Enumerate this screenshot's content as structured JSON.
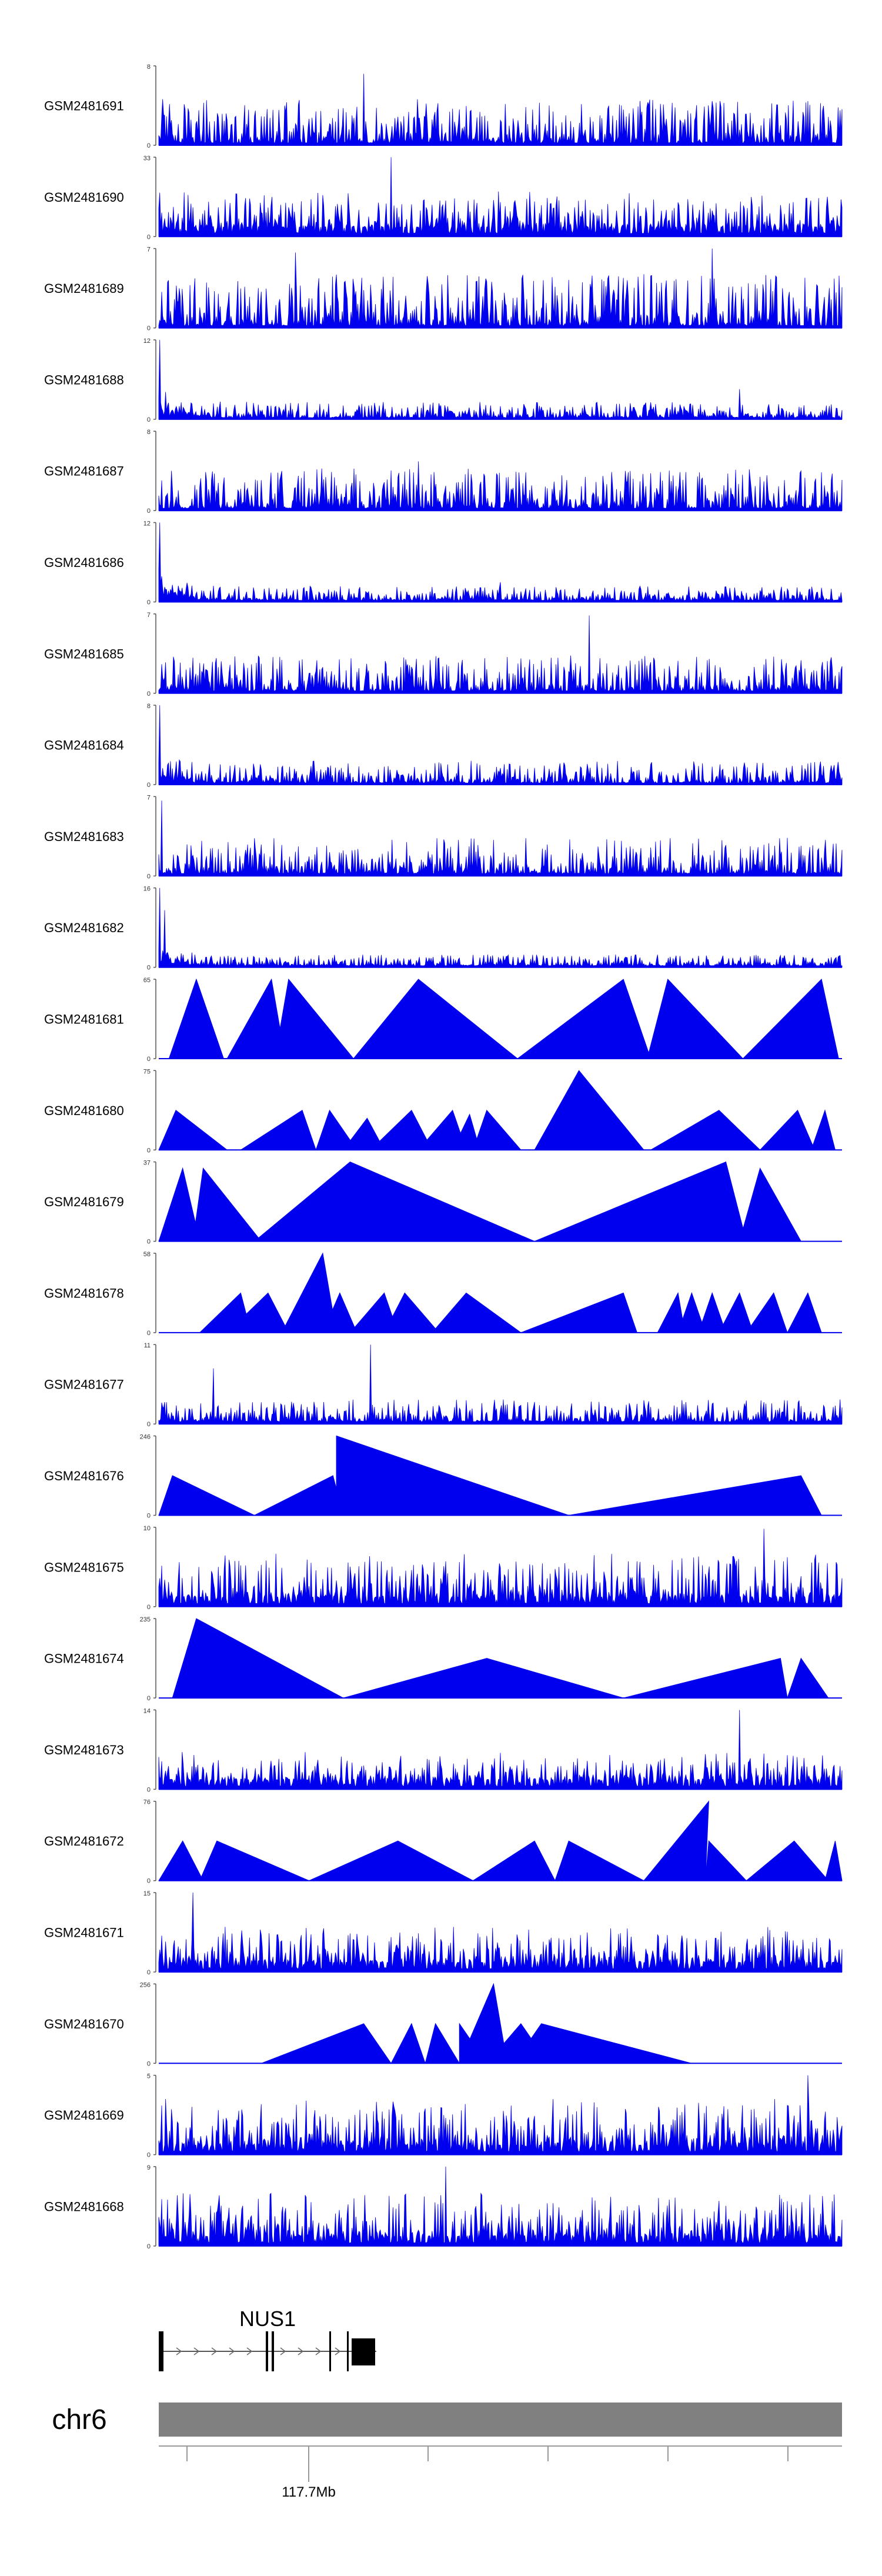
{
  "chart_data": {
    "type": "area",
    "color": "#0000ee",
    "tracks": [
      {
        "name": "GSM2481691",
        "ymax": "8",
        "ymin": "0",
        "style": "noise",
        "seed": 11,
        "spikes": [
          [
            0.3,
            0.9
          ]
        ],
        "jag": 0.55
      },
      {
        "name": "GSM2481690",
        "ymax": "33",
        "ymin": "0",
        "style": "tri",
        "seed": 12,
        "spikes": [
          [
            0.34,
            1.0
          ]
        ],
        "jag": 0.45
      },
      {
        "name": "GSM2481689",
        "ymax": "7",
        "ymin": "0",
        "style": "noise",
        "seed": 13,
        "spikes": [
          [
            0.81,
            1.0
          ],
          [
            0.2,
            0.95
          ]
        ],
        "jag": 0.65
      },
      {
        "name": "GSM2481688",
        "ymax": "12",
        "ymin": "0",
        "style": "low",
        "seed": 14,
        "spikes": [
          [
            0.002,
            1.0
          ],
          [
            0.85,
            0.38
          ]
        ],
        "jag": 0.2
      },
      {
        "name": "GSM2481687",
        "ymax": "8",
        "ymin": "0",
        "style": "noise",
        "seed": 15,
        "spikes": [
          [
            0.38,
            0.62
          ]
        ],
        "jag": 0.5
      },
      {
        "name": "GSM2481686",
        "ymax": "12",
        "ymin": "0",
        "style": "low",
        "seed": 16,
        "spikes": [
          [
            0.002,
            1.0
          ],
          [
            0.5,
            0.25
          ]
        ],
        "jag": 0.18
      },
      {
        "name": "GSM2481685",
        "ymax": "7",
        "ymin": "0",
        "style": "noise",
        "seed": 17,
        "spikes": [
          [
            0.63,
            0.98
          ]
        ],
        "jag": 0.45
      },
      {
        "name": "GSM2481684",
        "ymax": "8",
        "ymin": "0",
        "style": "low",
        "seed": 18,
        "spikes": [
          [
            0.002,
            1.0
          ]
        ],
        "jag": 0.28
      },
      {
        "name": "GSM2481683",
        "ymax": "7",
        "ymin": "0",
        "style": "noise",
        "seed": 19,
        "spikes": [
          [
            0.004,
            0.95
          ]
        ],
        "jag": 0.45
      },
      {
        "name": "GSM2481682",
        "ymax": "16",
        "ymin": "0",
        "style": "low",
        "seed": 20,
        "spikes": [
          [
            0.002,
            1.0
          ],
          [
            0.008,
            0.72
          ]
        ],
        "jag": 0.14
      },
      {
        "name": "GSM2481681",
        "ymax": "65",
        "ymin": "0",
        "style": "peaks",
        "peaks": [
          [
            0.015,
            0.095,
            0.055,
            1.0
          ],
          [
            0.1,
            0.185,
            0.165,
            1.0
          ],
          [
            0.17,
            0.285,
            0.19,
            1.0
          ],
          [
            0.285,
            0.525,
            0.38,
            1.0
          ],
          [
            0.525,
            0.72,
            0.68,
            1.0
          ],
          [
            0.715,
            0.855,
            0.745,
            1.0
          ],
          [
            0.855,
            0.995,
            0.97,
            1.0
          ]
        ]
      },
      {
        "name": "GSM2481680",
        "ymax": "75",
        "ymin": "0",
        "style": "peaks",
        "peaks": [
          [
            0.0,
            0.1,
            0.025,
            0.5
          ],
          [
            0.12,
            0.23,
            0.21,
            0.5
          ],
          [
            0.23,
            0.29,
            0.25,
            0.5
          ],
          [
            0.27,
            0.33,
            0.305,
            0.4
          ],
          [
            0.31,
            0.4,
            0.37,
            0.5
          ],
          [
            0.38,
            0.45,
            0.43,
            0.5
          ],
          [
            0.43,
            0.47,
            0.455,
            0.45
          ],
          [
            0.46,
            0.53,
            0.48,
            0.5
          ],
          [
            0.55,
            0.71,
            0.615,
            1.0
          ],
          [
            0.72,
            0.88,
            0.82,
            0.5
          ],
          [
            0.88,
            0.96,
            0.935,
            0.5
          ],
          [
            0.955,
            0.99,
            0.975,
            0.5
          ]
        ]
      },
      {
        "name": "GSM2481679",
        "ymax": "37",
        "ymin": "0",
        "style": "peaks",
        "peaks": [
          [
            0.0,
            0.06,
            0.035,
            0.92
          ],
          [
            0.05,
            0.15,
            0.065,
            0.92
          ],
          [
            0.14,
            0.55,
            0.28,
            1.0
          ],
          [
            0.55,
            0.86,
            0.83,
            1.0
          ],
          [
            0.85,
            0.94,
            0.88,
            0.92
          ]
        ]
      },
      {
        "name": "GSM2481678",
        "ymax": "58",
        "ymin": "0",
        "style": "peaks",
        "peaks": [
          [
            0.06,
            0.135,
            0.12,
            0.5
          ],
          [
            0.1,
            0.19,
            0.16,
            0.5
          ],
          [
            0.18,
            0.26,
            0.24,
            1.0
          ],
          [
            0.24,
            0.29,
            0.265,
            0.5
          ],
          [
            0.28,
            0.35,
            0.33,
            0.5
          ],
          [
            0.33,
            0.41,
            0.36,
            0.5
          ],
          [
            0.4,
            0.53,
            0.45,
            0.5
          ],
          [
            0.53,
            0.7,
            0.68,
            0.5
          ],
          [
            0.73,
            0.77,
            0.76,
            0.5
          ],
          [
            0.76,
            0.8,
            0.78,
            0.5
          ],
          [
            0.79,
            0.83,
            0.81,
            0.5
          ],
          [
            0.82,
            0.87,
            0.85,
            0.5
          ],
          [
            0.86,
            0.92,
            0.9,
            0.5
          ],
          [
            0.92,
            0.97,
            0.95,
            0.5
          ]
        ]
      },
      {
        "name": "GSM2481677",
        "ymax": "11",
        "ymin": "0",
        "style": "noise",
        "seed": 21,
        "spikes": [
          [
            0.31,
            1.0
          ],
          [
            0.08,
            0.7
          ]
        ],
        "jag": 0.28
      },
      {
        "name": "GSM2481676",
        "ymax": "246",
        "ymin": "0",
        "style": "peaks",
        "peaks": [
          [
            0.0,
            0.14,
            0.02,
            0.5
          ],
          [
            0.14,
            0.27,
            0.255,
            0.5
          ],
          [
            0.26,
            0.6,
            0.26,
            1.0
          ],
          [
            0.6,
            0.97,
            0.94,
            0.5
          ]
        ]
      },
      {
        "name": "GSM2481675",
        "ymax": "10",
        "ymin": "0",
        "style": "tri",
        "seed": 22,
        "spikes": [
          [
            0.885,
            0.98
          ]
        ],
        "jag": 0.55
      },
      {
        "name": "GSM2481674",
        "ymax": "235",
        "ymin": "0",
        "style": "peaks",
        "peaks": [
          [
            0.02,
            0.27,
            0.055,
            1.0
          ],
          [
            0.27,
            0.68,
            0.48,
            0.5
          ],
          [
            0.68,
            0.92,
            0.91,
            0.5
          ],
          [
            0.92,
            0.98,
            0.94,
            0.5
          ]
        ]
      },
      {
        "name": "GSM2481673",
        "ymax": "14",
        "ymin": "0",
        "style": "tri",
        "seed": 23,
        "spikes": [
          [
            0.85,
            1.0
          ]
        ],
        "jag": 0.35
      },
      {
        "name": "GSM2481672",
        "ymax": "76",
        "ymin": "0",
        "style": "peaks",
        "peaks": [
          [
            0.0,
            0.065,
            0.035,
            0.5
          ],
          [
            0.06,
            0.22,
            0.085,
            0.5
          ],
          [
            0.22,
            0.46,
            0.35,
            0.5
          ],
          [
            0.46,
            0.58,
            0.55,
            0.5
          ],
          [
            0.58,
            0.71,
            0.6,
            0.5
          ],
          [
            0.71,
            0.8,
            0.805,
            1.0
          ],
          [
            0.8,
            0.86,
            0.805,
            0.5
          ],
          [
            0.86,
            0.98,
            0.93,
            0.5
          ],
          [
            0.975,
            1.0,
            0.99,
            0.5
          ]
        ]
      },
      {
        "name": "GSM2481671",
        "ymax": "15",
        "ymin": "0",
        "style": "tri",
        "seed": 24,
        "spikes": [
          [
            0.05,
            1.0
          ]
        ],
        "jag": 0.45
      },
      {
        "name": "GSM2481670",
        "ymax": "256",
        "ymin": "0",
        "style": "peaks",
        "peaks": [
          [
            0.15,
            0.34,
            0.3,
            0.5
          ],
          [
            0.34,
            0.39,
            0.37,
            0.5
          ],
          [
            0.39,
            0.44,
            0.405,
            0.5
          ],
          [
            0.44,
            0.48,
            0.44,
            0.5
          ],
          [
            0.44,
            0.51,
            0.49,
            1.0
          ],
          [
            0.48,
            0.57,
            0.53,
            0.5
          ],
          [
            0.52,
            0.78,
            0.56,
            0.5
          ]
        ]
      },
      {
        "name": "GSM2481669",
        "ymax": "5",
        "ymin": "0",
        "style": "tri",
        "seed": 25,
        "spikes": [
          [
            0.95,
            1.0
          ]
        ],
        "jag": 0.6
      },
      {
        "name": "GSM2481668",
        "ymax": "9",
        "ymin": "0",
        "style": "tri",
        "seed": 26,
        "spikes": [
          [
            0.42,
            1.0
          ]
        ],
        "jag": 0.55
      }
    ],
    "gene": {
      "name": "NUS1"
    },
    "chromosome": "chr6",
    "axis": {
      "tick_label": "117.7Mb"
    }
  }
}
